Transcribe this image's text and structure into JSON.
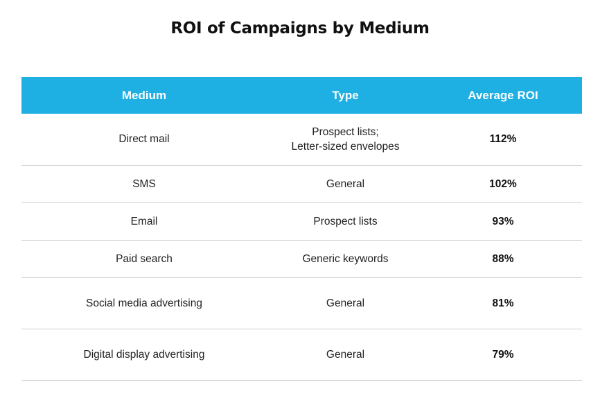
{
  "title": "ROI of Campaigns by Medium",
  "chart_data": {
    "type": "table",
    "title": "ROI of Campaigns by Medium",
    "columns": [
      "Medium",
      "Type",
      "Average ROI"
    ],
    "header_color": "#1fb0e3",
    "rows": [
      {
        "medium": "Direct mail",
        "type_lines": [
          "Prospect lists;",
          "Letter-sized envelopes"
        ],
        "roi": "112%"
      },
      {
        "medium": "SMS",
        "type_lines": [
          "General"
        ],
        "roi": "102%"
      },
      {
        "medium": "Email",
        "type_lines": [
          "Prospect lists"
        ],
        "roi": "93%"
      },
      {
        "medium": "Paid search",
        "type_lines": [
          "Generic keywords"
        ],
        "roi": "88%"
      },
      {
        "medium": "Social media advertising",
        "type_lines": [
          "General"
        ],
        "roi": "81%"
      },
      {
        "medium": "Digital display advertising",
        "type_lines": [
          "General"
        ],
        "roi": "79%"
      }
    ]
  }
}
